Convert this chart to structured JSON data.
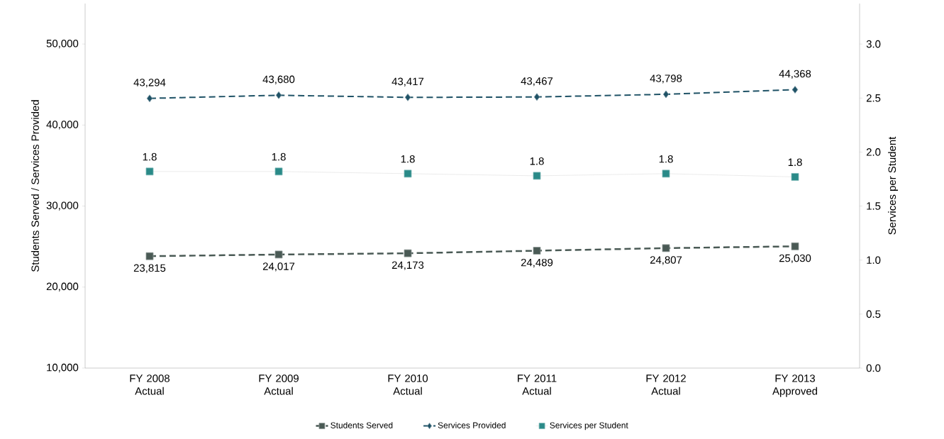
{
  "chart_data": {
    "type": "line",
    "categories": [
      "FY 2008 Actual",
      "FY 2009 Actual",
      "FY 2010 Actual",
      "FY 2011 Actual",
      "FY 2012 Actual",
      "FY 2013 Approved"
    ],
    "ylabel": "Students Served / Services Provided",
    "y2label": "Services per Student",
    "ylim": [
      10000,
      55000
    ],
    "yticks": [
      {
        "value": 10000,
        "label": "10,000"
      },
      {
        "value": 20000,
        "label": "20,000"
      },
      {
        "value": 30000,
        "label": "30,000"
      },
      {
        "value": 40000,
        "label": "40,000"
      },
      {
        "value": 50000,
        "label": "50,000"
      }
    ],
    "y2lim": [
      0,
      3.375
    ],
    "y2ticks": [
      {
        "value": 0,
        "label": "0.0"
      },
      {
        "value": 0.5,
        "label": "0.5"
      },
      {
        "value": 1,
        "label": "1.0"
      },
      {
        "value": 1.5,
        "label": "1.5"
      },
      {
        "value": 2,
        "label": "2.0"
      },
      {
        "value": 2.5,
        "label": "2.5"
      },
      {
        "value": 3,
        "label": "3.0"
      }
    ],
    "series": [
      {
        "name": "Students Served",
        "color": "#4a5a55",
        "marker": "square",
        "line_style": "dashed",
        "values": [
          23815,
          24017,
          24173,
          24489,
          24807,
          25030
        ],
        "value_labels": [
          "23,815",
          "24,017",
          "24,173",
          "24,489",
          "24,807",
          "25,030"
        ]
      },
      {
        "name": "Services Provided",
        "color": "#1f5266",
        "marker": "diamond",
        "line_style": "dashed",
        "values": [
          43294,
          43680,
          43417,
          43467,
          43798,
          44368
        ],
        "value_labels": [
          "43,294",
          "43,680",
          "43,417",
          "43,467",
          "43,798",
          "44,368"
        ]
      },
      {
        "name": "Services per Student",
        "color": "#2a8a88",
        "marker": "square",
        "line_style": "solid",
        "axis": "y2",
        "values": [
          1.82,
          1.82,
          1.8,
          1.78,
          1.8,
          1.77
        ],
        "value_labels": [
          "1.8",
          "1.8",
          "1.8",
          "1.8",
          "1.8",
          "1.8"
        ]
      }
    ],
    "legend": "bottom",
    "grid": false
  }
}
